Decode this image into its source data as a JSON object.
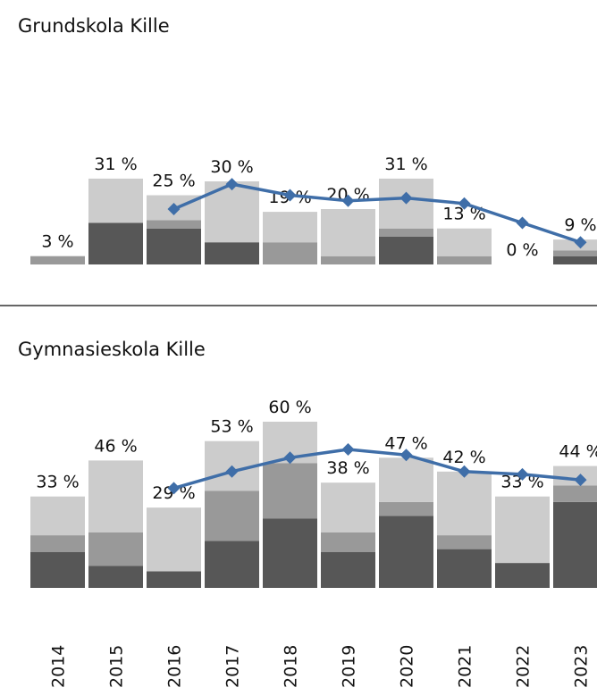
{
  "chart_data": [
    {
      "type": "bar",
      "title": "Grundskola Kille",
      "series": [
        {
          "color": "#575757",
          "values": [
            0,
            15,
            13,
            8,
            0,
            0,
            10,
            0,
            0,
            3
          ]
        },
        {
          "color": "#999999",
          "values": [
            3,
            0,
            3,
            0,
            8,
            3,
            3,
            3,
            0,
            2
          ]
        },
        {
          "color": "#cccccc",
          "values": [
            0,
            16,
            9,
            22,
            11,
            17,
            18,
            10,
            0,
            4
          ]
        }
      ],
      "totals": [
        3,
        31,
        25,
        30,
        19,
        20,
        31,
        13,
        0,
        9
      ],
      "total_labels": [
        "3 %",
        "31 %",
        "25 %",
        "30 %",
        "19 %",
        "20 %",
        "31 %",
        "13 %",
        "0 %",
        "9 %"
      ],
      "line": {
        "color": "#3f6ea8",
        "values": [
          null,
          null,
          20,
          29,
          25,
          23,
          24,
          22,
          15,
          8
        ]
      }
    },
    {
      "type": "bar",
      "title": "Gymnasieskola Kille",
      "categories": [
        "2014",
        "2015",
        "2016",
        "2017",
        "2018",
        "2019",
        "2020",
        "2021",
        "2022",
        "2023"
      ],
      "series": [
        {
          "color": "#575757",
          "values": [
            13,
            8,
            6,
            17,
            25,
            13,
            26,
            14,
            9,
            31
          ]
        },
        {
          "color": "#999999",
          "values": [
            6,
            12,
            0,
            18,
            20,
            7,
            5,
            5,
            0,
            6
          ]
        },
        {
          "color": "#cccccc",
          "values": [
            14,
            26,
            23,
            18,
            15,
            18,
            16,
            23,
            24,
            7
          ]
        }
      ],
      "totals": [
        33,
        46,
        29,
        53,
        60,
        38,
        47,
        42,
        33,
        44
      ],
      "total_labels": [
        "33 %",
        "46 %",
        "29 %",
        "53 %",
        "60 %",
        "38 %",
        "47 %",
        "42 %",
        "33 %",
        "44 %"
      ],
      "line": {
        "color": "#3f6ea8",
        "values": [
          null,
          null,
          36,
          42,
          47,
          50,
          48,
          42,
          41,
          39
        ]
      }
    }
  ]
}
